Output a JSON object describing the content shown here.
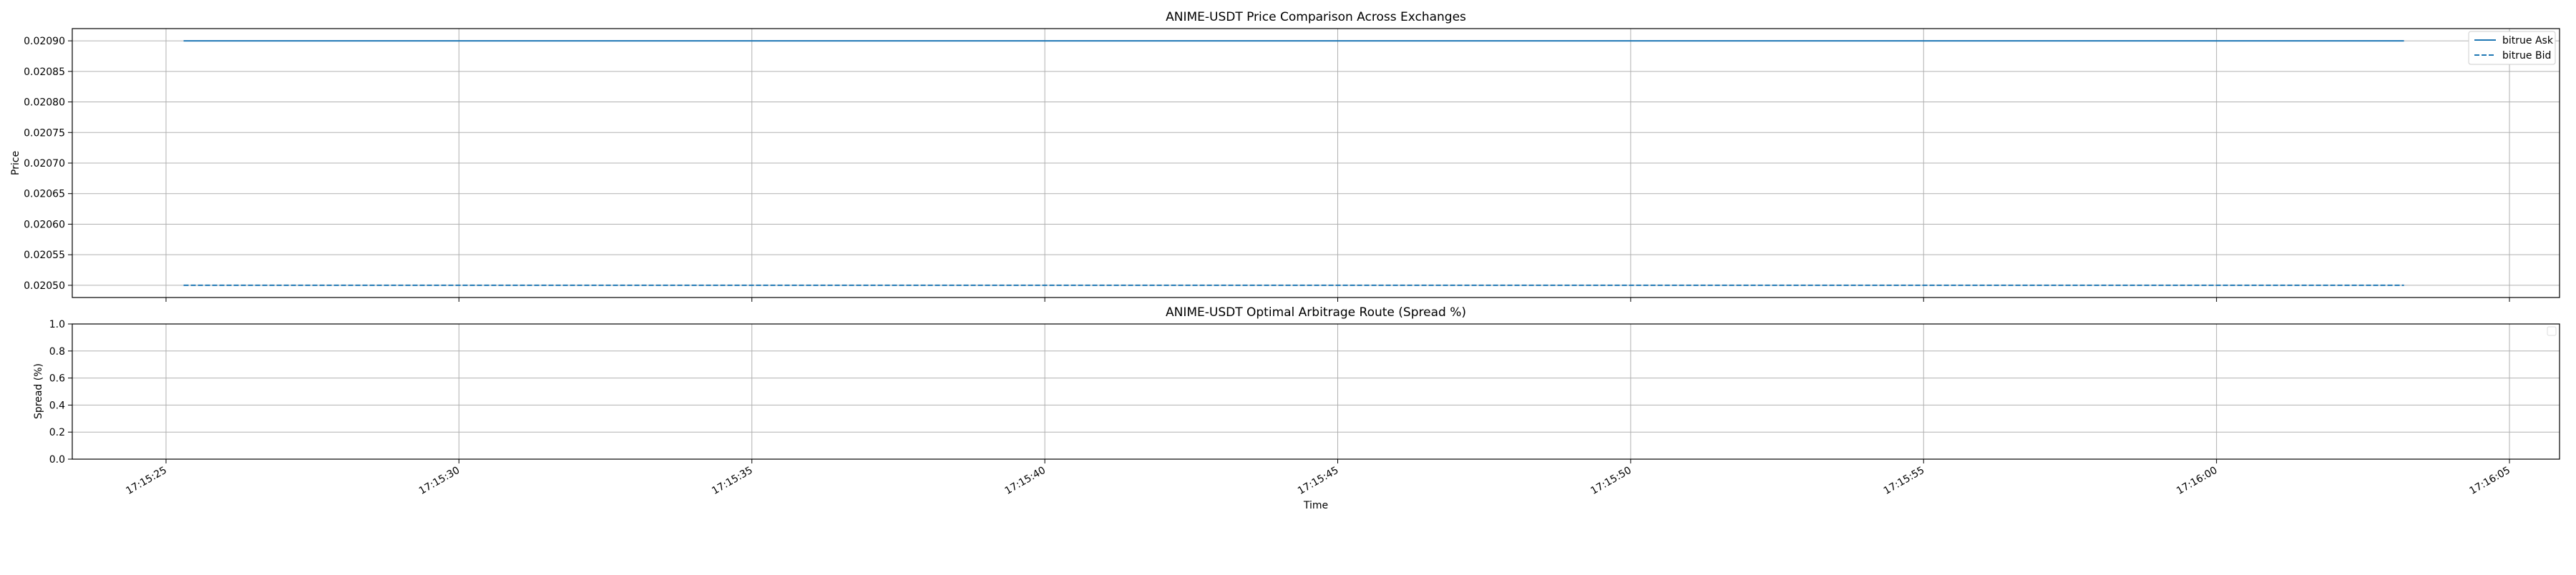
{
  "chart_data": [
    {
      "type": "line",
      "title": "ANIME-USDT Price Comparison Across Exchanges",
      "xlabel": "",
      "ylabel": "Price",
      "ylim": [
        0.02048,
        0.02092
      ],
      "yticks": [
        "0.02050",
        "0.02055",
        "0.02060",
        "0.02065",
        "0.02070",
        "0.02075",
        "0.02080",
        "0.02085",
        "0.02090"
      ],
      "x_range": [
        "17:15:25",
        "17:16:05"
      ],
      "grid": true,
      "legend_position": "top-right",
      "series": [
        {
          "name": "bitrue Ask",
          "style": "solid",
          "color": "#1f77b4",
          "x": [
            "17:15:25.3",
            "17:16:03.2"
          ],
          "y": [
            0.0209,
            0.0209
          ]
        },
        {
          "name": "bitrue Bid",
          "style": "dashed",
          "color": "#1f77b4",
          "x": [
            "17:15:25.3",
            "17:16:03.2"
          ],
          "y": [
            0.0205,
            0.0205
          ]
        }
      ]
    },
    {
      "type": "line",
      "title": "ANIME-USDT Optimal Arbitrage Route (Spread %)",
      "xlabel": "Time",
      "ylabel": "Spread (%)",
      "ylim": [
        0.0,
        1.0
      ],
      "yticks": [
        "0.0",
        "0.2",
        "0.4",
        "0.6",
        "0.8",
        "1.0"
      ],
      "xticks": [
        "17:15:25",
        "17:15:30",
        "17:15:35",
        "17:15:40",
        "17:15:45",
        "17:15:50",
        "17:15:55",
        "17:16:00",
        "17:16:05"
      ],
      "grid": true,
      "series": []
    }
  ]
}
